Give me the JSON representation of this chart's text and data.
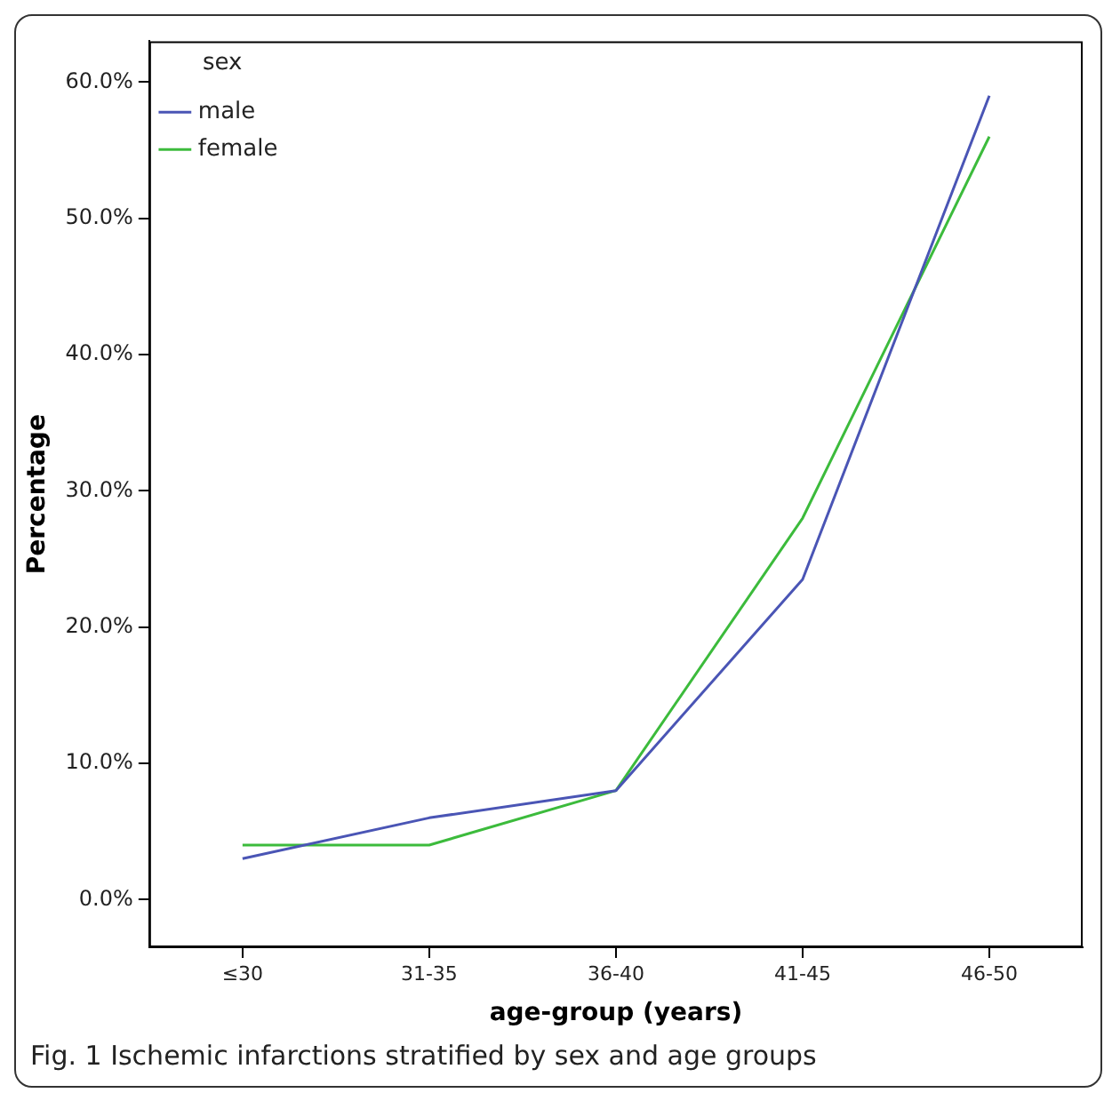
{
  "chart_data": {
    "type": "line",
    "xlabel": "age-group (years)",
    "ylabel": "Percentage",
    "legend_title": "sex",
    "categories": [
      "≤30",
      "31-35",
      "36-40",
      "41-45",
      "46-50"
    ],
    "series": [
      {
        "name": "male",
        "color": "#4a55b5",
        "values": [
          3.0,
          6.0,
          8.0,
          23.5,
          59.0
        ]
      },
      {
        "name": "female",
        "color": "#3cbb3c",
        "values": [
          4.0,
          4.0,
          8.0,
          28.0,
          56.0
        ]
      }
    ],
    "ylim": [
      -3.5,
      63
    ],
    "yticks": [
      {
        "value": 0,
        "label": "0.0%"
      },
      {
        "value": 10,
        "label": "10.0%"
      },
      {
        "value": 20,
        "label": "20.0%"
      },
      {
        "value": 30,
        "label": "30.0%"
      },
      {
        "value": 40,
        "label": "40.0%"
      },
      {
        "value": 50,
        "label": "50.0%"
      },
      {
        "value": 60,
        "label": "60.0%"
      }
    ],
    "grid": false,
    "legend": "top left",
    "marker": "none",
    "line_style": "solid",
    "annotations": [
      "Fig. 1 Ischemic infarctions stratified by sex and age groups"
    ]
  }
}
